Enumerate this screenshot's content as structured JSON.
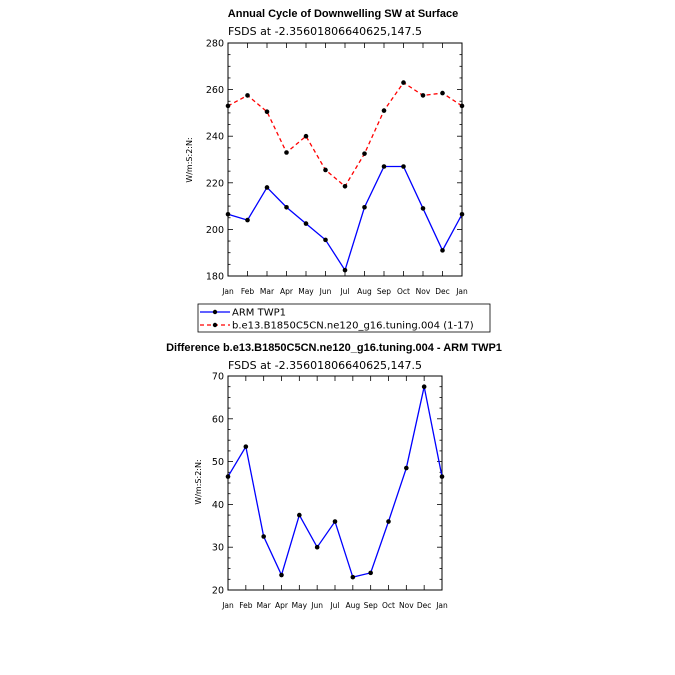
{
  "chart_data": [
    {
      "type": "line",
      "title": "Annual Cycle of Downwelling SW at Surface",
      "subtitle": "FSDS at -2.35601806640625,147.5",
      "xlabel": "",
      "ylabel": "W/m:S:2:N:",
      "categories": [
        "Jan",
        "Feb",
        "Mar",
        "Apr",
        "May",
        "Jun",
        "Jul",
        "Aug",
        "Sep",
        "Oct",
        "Nov",
        "Dec",
        "Jan"
      ],
      "ylim": [
        180,
        280
      ],
      "yticks": [
        180,
        200,
        220,
        240,
        260,
        280
      ],
      "grid": false,
      "legend_position": "bottom",
      "series": [
        {
          "name": "ARM TWP1",
          "color": "#0000ff",
          "dash": "solid",
          "values": [
            206.5,
            204,
            218,
            209.5,
            202.5,
            195.5,
            182.5,
            209.5,
            227,
            227,
            209,
            191,
            206.5
          ]
        },
        {
          "name": "b.e13.B1850C5CN.ne120_g16.tuning.004 (1-17)",
          "color": "#ff0000",
          "dash": "dashed",
          "values": [
            253,
            257.5,
            250.5,
            233,
            240,
            225.5,
            218.5,
            232.5,
            251,
            263,
            257.5,
            258.5,
            253
          ]
        }
      ]
    },
    {
      "type": "line",
      "title": "Difference b.e13.B1850C5CN.ne120_g16.tuning.004 - ARM TWP1",
      "subtitle": "FSDS at -2.35601806640625,147.5",
      "xlabel": "",
      "ylabel": "W/m:S:2:N:",
      "categories": [
        "Jan",
        "Feb",
        "Mar",
        "Apr",
        "May",
        "Jun",
        "Jul",
        "Aug",
        "Sep",
        "Oct",
        "Nov",
        "Dec",
        "Jan"
      ],
      "ylim": [
        20,
        70
      ],
      "yticks": [
        20,
        30,
        40,
        50,
        60,
        70
      ],
      "grid": false,
      "series": [
        {
          "color": "#0000ff",
          "dash": "solid",
          "values": [
            46.5,
            53.5,
            32.5,
            23.5,
            37.5,
            30,
            36,
            23,
            24,
            36,
            48.5,
            67.5,
            46.5
          ]
        }
      ]
    }
  ]
}
